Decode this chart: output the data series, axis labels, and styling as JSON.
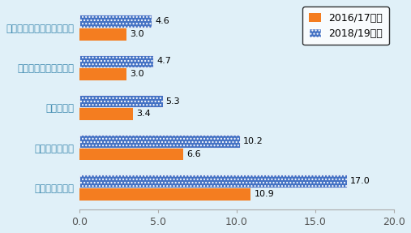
{
  "categories": [
    "ハウス・オブ・フレーザー",
    "マークス＆スペンサー",
    "デベナムズ",
    "ジョン・ルイス",
    "セルフリッジズ"
  ],
  "values_2016": [
    3.0,
    3.0,
    3.4,
    6.6,
    10.9
  ],
  "values_2018": [
    4.6,
    4.7,
    5.3,
    10.2,
    17.0
  ],
  "color_2016": "#f47d20",
  "color_2018": "#4472c4",
  "hatch_2018": "....",
  "legend_2016": "2016/17年度",
  "legend_2018": "2018/19年度",
  "xlim": [
    0,
    20.0
  ],
  "xticks": [
    0.0,
    5.0,
    10.0,
    15.0,
    20.0
  ],
  "background_color": "#e0f0f8",
  "bar_height": 0.32,
  "label_fontsize": 8.5,
  "tick_fontsize": 9,
  "legend_fontsize": 9,
  "value_fontsize": 8,
  "ytick_color": "#3e8ab0",
  "label_color": "#3e8ab0"
}
